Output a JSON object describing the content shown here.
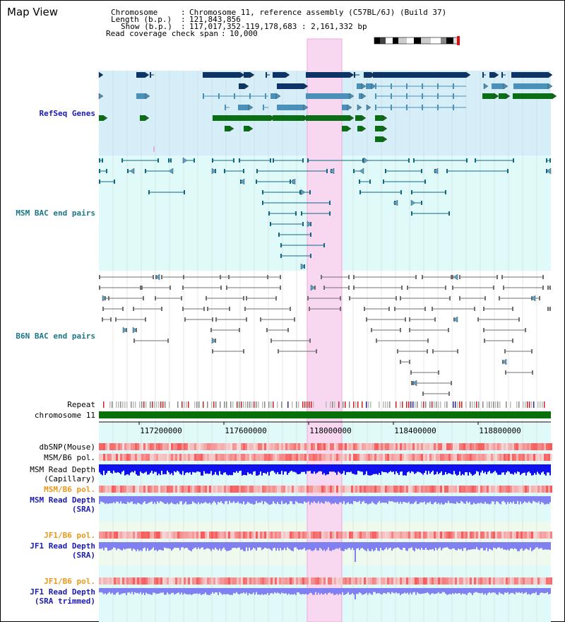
{
  "header": {
    "title": "Map View",
    "chromosome_label": "Chromosome",
    "chromosome_value": "Chromosome 11, reference assembly (C57BL/6J) (Build 37)",
    "length_label": "Length (b.p.)",
    "length_value": "121,843,856",
    "show_label": "Show (b.p.)",
    "show_value": "117,017,352-119,178,683 : 2,161,332 bp",
    "coverage_label": "Read coverage check span",
    "coverage_value": "10,000"
  },
  "tracks": {
    "refseq": "RefSeq Genes",
    "msm_bac": "MSM BAC end pairs",
    "b6n_bac": "B6N BAC end pairs",
    "repeat": "Repeat",
    "chromosome": "chromosome 11",
    "dbsnp": "dbSNP(Mouse)",
    "msm_b6_pol_1": "MSM/B6 pol.",
    "msm_read_depth_cap_1": "MSM Read Depth",
    "msm_read_depth_cap_2": "(Capillary)",
    "msm_b6_pol_2": "MSM/B6 pol.",
    "msm_read_depth_sra_1": "MSM Read Depth",
    "msm_read_depth_sra_2": "(SRA)",
    "jf1_b6_pol_1": "JF1/B6 pol.",
    "jf1_read_depth_sra_1": "JF1 Read Depth",
    "jf1_read_depth_sra_2": "(SRA)",
    "jf1_b6_pol_2": "JF1/B6 pol.",
    "jf1_read_depth_trim_1": "JF1 Read Depth",
    "jf1_read_depth_trim_2": "(SRA trimmed)"
  },
  "axis": {
    "ticks": [
      "117200000",
      "117600000",
      "118000000",
      "118400000",
      "118800000"
    ]
  },
  "colors": {
    "refseq_bg": "#d6eef8",
    "bac_bg": "#e0fafa",
    "highlight": "#f8d8f0",
    "gene_navy": "#0c3466",
    "gene_steel": "#4a90b8",
    "gene_green": "#0a6e14",
    "bac_teal": "#106880",
    "bac_gray": "#707070",
    "chromosome_green": "#087008",
    "label_navy": "#1c1cb0",
    "label_teal": "#187888",
    "label_orange": "#e89818",
    "depth_blue": "#1010ee",
    "depth_light": "#8080f0"
  }
}
